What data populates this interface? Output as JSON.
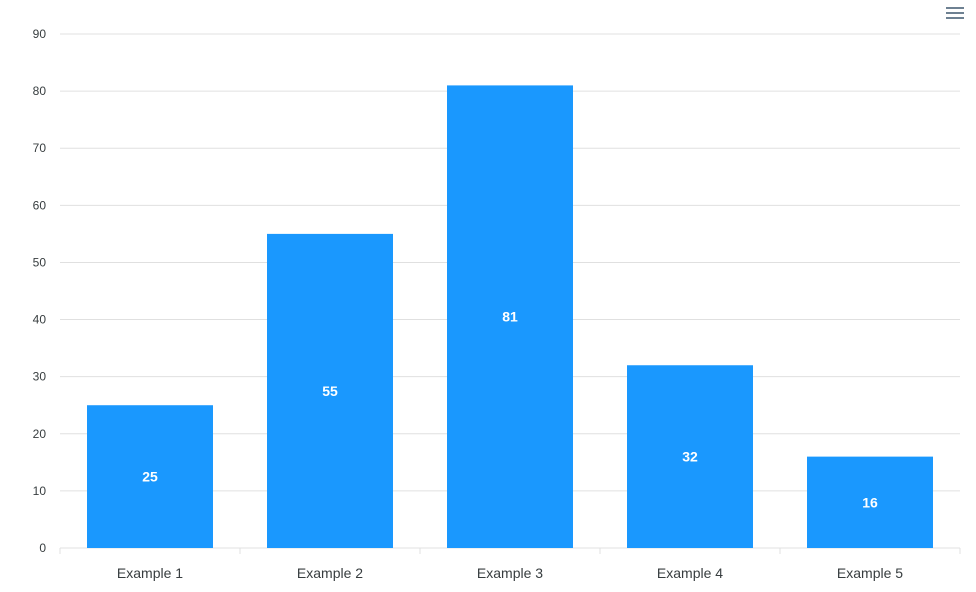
{
  "toolbar": {
    "menu_icon": "hamburger-menu-icon"
  },
  "colors": {
    "bar": "#1a98fe",
    "gridline": "#e0e0e0",
    "axis_text": "#373d3f",
    "data_label": "#ffffff"
  },
  "chart_data": {
    "type": "bar",
    "categories": [
      "Example 1",
      "Example 2",
      "Example 3",
      "Example 4",
      "Example 5"
    ],
    "values": [
      25,
      55,
      81,
      32,
      16
    ],
    "data_labels": [
      "25",
      "55",
      "81",
      "32",
      "16"
    ],
    "y_ticks": [
      "0",
      "10",
      "20",
      "30",
      "40",
      "50",
      "60",
      "70",
      "80",
      "90"
    ],
    "ylim": [
      0,
      90
    ],
    "grid": true,
    "title": "",
    "xlabel": "",
    "ylabel": ""
  }
}
